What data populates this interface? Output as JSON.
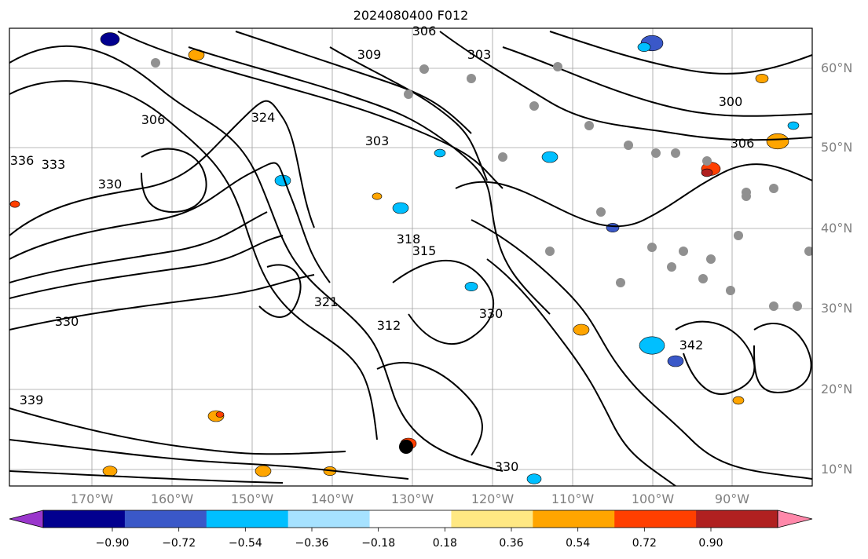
{
  "title": "2024080400 F012",
  "lat_labels": [
    "60°N",
    "50°N",
    "40°N",
    "30°N",
    "20°N",
    "10°N"
  ],
  "lon_labels": [
    "170°W",
    "160°W",
    "150°W",
    "140°W",
    "130°W",
    "120°W",
    "110°W",
    "100°W",
    "90°W"
  ],
  "colorbar": {
    "ticks": [
      "−0.90",
      "−0.72",
      "−0.54",
      "−0.36",
      "−0.18",
      "0.18",
      "0.36",
      "0.54",
      "0.72",
      "0.90"
    ],
    "colors": [
      "#9a36cc",
      "#02008f",
      "#3a58c8",
      "#00bfff",
      "#a6e2ff",
      "#ffffff",
      "#ffe883",
      "#ffa500",
      "#ff3f00",
      "#b02020",
      "#ff88aa"
    ]
  },
  "contour_labels": [
    "306",
    "303",
    "309",
    "324",
    "336",
    "333",
    "330",
    "318",
    "315",
    "312",
    "321",
    "339",
    "342",
    "300"
  ],
  "colors": {
    "contour": "#000000",
    "grid": "#a0a0a0",
    "dots": "#909090"
  }
}
